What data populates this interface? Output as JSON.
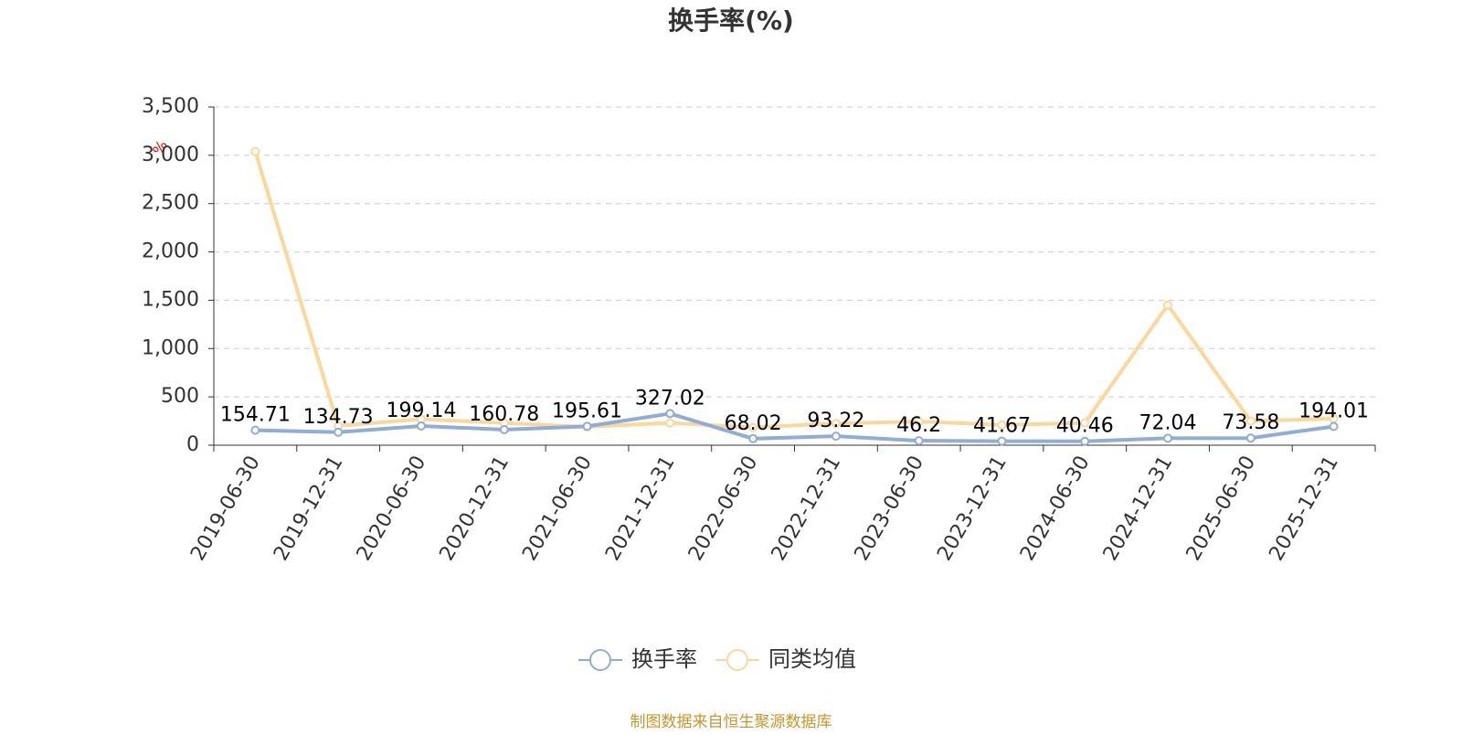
{
  "chart_data": {
    "type": "line",
    "title": "换手率(%)",
    "ylabel": "%",
    "categories": [
      "2019-06-30",
      "2019-12-31",
      "2020-06-30",
      "2020-12-31",
      "2021-06-30",
      "2021-12-31",
      "2022-06-30",
      "2022-12-31",
      "2023-06-30",
      "2023-12-31",
      "2024-06-30",
      "2024-12-31",
      "2025-06-30",
      "2025-12-31"
    ],
    "series": [
      {
        "name": "换手率",
        "color": "#8eadd9",
        "values": [
          154.71,
          134.73,
          199.14,
          160.78,
          195.61,
          327.02,
          68.02,
          93.22,
          46.2,
          41.67,
          40.46,
          72.04,
          73.58,
          194.01
        ]
      },
      {
        "name": "同类均值",
        "color": "#fcd898",
        "values": [
          3040,
          200,
          270,
          230,
          190,
          230,
          185,
          225,
          245,
          210,
          230,
          1450,
          250,
          275
        ]
      }
    ],
    "ylim": [
      0,
      3500
    ],
    "yticks": [
      0,
      500,
      {
        "value": 1000,
        "label": "1,000"
      },
      {
        "value": 1500,
        "label": "1,500"
      },
      {
        "value": 2000,
        "label": "2,000"
      },
      {
        "value": 2500,
        "label": "2,500"
      },
      {
        "value": 3000,
        "label": "3,000"
      },
      {
        "value": 3500,
        "label": "3,500"
      }
    ],
    "grid": true,
    "source": "制图数据来自恒生聚源数据库"
  }
}
